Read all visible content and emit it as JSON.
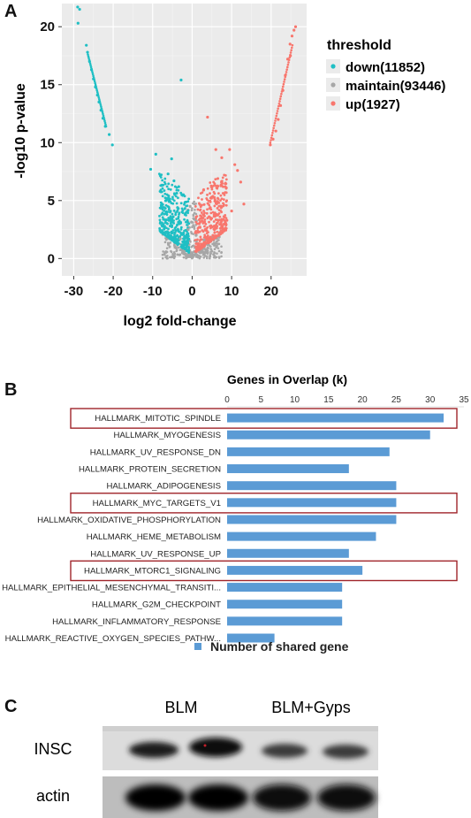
{
  "panels": {
    "a": "A",
    "b": "B",
    "c": "C"
  },
  "chart_data": [
    {
      "type": "scatter",
      "panel": "A",
      "title": "",
      "xlabel": "log2 fold-change",
      "ylabel": "-log10 p-value",
      "xlim": [
        -33,
        29
      ],
      "ylim": [
        -1.5,
        22
      ],
      "xticks": [
        -30,
        -20,
        -10,
        0,
        10,
        20
      ],
      "yticks": [
        0,
        5,
        10,
        15,
        20
      ],
      "grid": true,
      "background": "#ebebeb",
      "legend": {
        "title": "threshold",
        "position": "right",
        "entries": [
          {
            "label": "down(11852)",
            "color": "#1fbfc4"
          },
          {
            "label": "maintain(93446)",
            "color": "#a6a6a6"
          },
          {
            "label": "up(1927)",
            "color": "#f8766d"
          }
        ]
      },
      "series": [
        {
          "name": "down(11852)",
          "color": "#1fbfc4",
          "points": [
            [
              -29,
              21.7
            ],
            [
              -28.5,
              21.5
            ],
            [
              -28.9,
              20.3
            ],
            [
              -26.8,
              18.4
            ],
            [
              -26.5,
              17.8
            ],
            [
              -26,
              17
            ],
            [
              -25.5,
              16.3
            ],
            [
              -25,
              15.5
            ],
            [
              -24.5,
              14.8
            ],
            [
              -24,
              14.1
            ],
            [
              -23.6,
              13.5
            ],
            [
              -23.1,
              12.8
            ],
            [
              -22.6,
              12.1
            ],
            [
              -22,
              11.4
            ],
            [
              -21,
              10.7
            ],
            [
              -20.2,
              9.8
            ],
            [
              -10.5,
              7.7
            ],
            [
              -9.2,
              9
            ],
            [
              -7.7,
              6.3
            ],
            [
              -6.6,
              5
            ],
            [
              -6.1,
              7.3
            ],
            [
              -5.2,
              8.6
            ],
            [
              -4.6,
              6.7
            ],
            [
              -3.4,
              6.2
            ],
            [
              -2.6,
              5.5
            ],
            [
              -2.8,
              15.4
            ],
            [
              -5.5,
              2.8
            ],
            [
              -4.8,
              3.6
            ],
            [
              -4.1,
              2.4
            ],
            [
              -3.7,
              4.4
            ],
            [
              -3.2,
              3
            ],
            [
              -2.2,
              2.2
            ],
            [
              -1.8,
              3.8
            ],
            [
              -6.5,
              2.3
            ]
          ]
        },
        {
          "name": "maintain(93446)",
          "color": "#a6a6a6",
          "points": [
            [
              -6,
              1.2
            ],
            [
              -4,
              0.9
            ],
            [
              -2,
              0.6
            ],
            [
              0,
              0.1
            ],
            [
              2,
              0.5
            ],
            [
              4,
              0.9
            ],
            [
              6,
              1.3
            ],
            [
              -1,
              2.5
            ],
            [
              0.5,
              3.4
            ],
            [
              -0.5,
              4.5
            ],
            [
              1,
              2
            ],
            [
              -3,
              1.7
            ],
            [
              3,
              1.6
            ]
          ]
        },
        {
          "name": "up(1927)",
          "color": "#f8766d",
          "points": [
            [
              26.2,
              20
            ],
            [
              25.8,
              19.7
            ],
            [
              25.3,
              19.2
            ],
            [
              24.8,
              18.5
            ],
            [
              24.2,
              17.2
            ],
            [
              23.6,
              15.8
            ],
            [
              23,
              14.5
            ],
            [
              22.4,
              13.2
            ],
            [
              21.8,
              12
            ],
            [
              21.2,
              11
            ],
            [
              20.5,
              10.3
            ],
            [
              19.8,
              9.8
            ],
            [
              24.9,
              17.5
            ],
            [
              3.9,
              12.2
            ],
            [
              6,
              9.4
            ],
            [
              7.5,
              8.7
            ],
            [
              9.5,
              9.4
            ],
            [
              10.8,
              8.1
            ],
            [
              11.5,
              7.6
            ],
            [
              13.1,
              4.7
            ],
            [
              12.3,
              6.6
            ],
            [
              8.4,
              6.2
            ],
            [
              4.9,
              5.2
            ],
            [
              2.4,
              4.6
            ],
            [
              1.8,
              3
            ],
            [
              3.3,
              2.5
            ],
            [
              4.3,
              3.6
            ],
            [
              5.6,
              2.8
            ],
            [
              7,
              2.2
            ],
            [
              8.8,
              3.3
            ],
            [
              2.9,
              5.9
            ],
            [
              10,
              4.1
            ]
          ]
        }
      ]
    },
    {
      "type": "bar",
      "panel": "B",
      "orientation": "horizontal",
      "title": "Genes in Overlap (k)",
      "xlim": [
        0,
        35
      ],
      "xticks": [
        0,
        5,
        10,
        15,
        20,
        25,
        30,
        35
      ],
      "categories": [
        "HALLMARK_MITOTIC_SPINDLE",
        "HALLMARK_MYOGENESIS",
        "HALLMARK_UV_RESPONSE_DN",
        "HALLMARK_PROTEIN_SECRETION",
        "HALLMARK_ADIPOGENESIS",
        "HALLMARK_MYC_TARGETS_V1",
        "HALLMARK_OXIDATIVE_PHOSPHORYLATION",
        "HALLMARK_HEME_METABOLISM",
        "HALLMARK_UV_RESPONSE_UP",
        "HALLMARK_MTORC1_SIGNALING",
        "HALLMARK_EPITHELIAL_MESENCHYMAL_TRANSITI...",
        "HALLMARK_G2M_CHECKPOINT",
        "HALLMARK_INFLAMMATORY_RESPONSE",
        "HALLMARK_REACTIVE_OXYGEN_SPECIES_PATHW..."
      ],
      "values": [
        32,
        30,
        24,
        18,
        25,
        25,
        25,
        22,
        18,
        20,
        17,
        17,
        17,
        7
      ],
      "highlighted": [
        0,
        5,
        9
      ],
      "bar_color": "#5b9bd5",
      "highlight_color": "#a0252b",
      "legend": {
        "label": "Number of shared gene",
        "position": "bottom"
      }
    }
  ],
  "blot": {
    "group_labels": [
      "BLM",
      "BLM+Gyps"
    ],
    "row_labels": [
      "INSC",
      "actin"
    ]
  }
}
